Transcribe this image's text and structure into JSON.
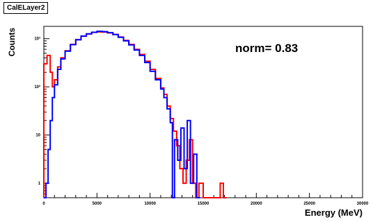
{
  "title": "CalELayer2",
  "annotation": "norm= 0.83",
  "chart_data": {
    "type": "line",
    "title": "CalELayer2",
    "xlabel": "Energy (MeV)",
    "ylabel": "Counts",
    "xlim": [
      0,
      30000
    ],
    "ylim": [
      0.5,
      1800
    ],
    "y_scale": "log",
    "x_ticks": [
      0,
      5000,
      10000,
      15000,
      20000,
      25000,
      30000
    ],
    "x_tick_labels": [
      "0",
      "5000",
      "10000",
      "15000",
      "20000",
      "25000",
      "30000"
    ],
    "y_ticks": [
      1,
      10,
      100,
      1000
    ],
    "y_tick_labels": [
      "1",
      "10",
      "10²",
      "10³"
    ],
    "grid": false,
    "series": [
      {
        "color": "#ff0000",
        "points": [
          [
            0,
            300
          ],
          [
            300,
            450
          ],
          [
            600,
            200
          ],
          [
            800,
            100
          ],
          [
            1000,
            140
          ],
          [
            1300,
            260
          ],
          [
            1600,
            400
          ],
          [
            2000,
            560
          ],
          [
            2500,
            760
          ],
          [
            3000,
            950
          ],
          [
            3500,
            1120
          ],
          [
            4000,
            1250
          ],
          [
            4500,
            1350
          ],
          [
            5000,
            1380
          ],
          [
            5500,
            1370
          ],
          [
            6000,
            1320
          ],
          [
            6500,
            1220
          ],
          [
            7000,
            1080
          ],
          [
            7500,
            920
          ],
          [
            8000,
            760
          ],
          [
            8500,
            600
          ],
          [
            9000,
            470
          ],
          [
            9500,
            340
          ],
          [
            10000,
            230
          ],
          [
            10500,
            150
          ],
          [
            11000,
            95
          ],
          [
            11300,
            70
          ],
          [
            11600,
            40
          ],
          [
            11900,
            22
          ],
          [
            12200,
            12
          ],
          [
            12500,
            6
          ],
          [
            12800,
            2
          ],
          [
            13100,
            1
          ],
          [
            13400,
            3
          ],
          [
            13700,
            8
          ],
          [
            14000,
            1
          ],
          [
            14300,
            0.5
          ],
          [
            14600,
            1
          ],
          [
            15000,
            0.5
          ],
          [
            16600,
            1
          ],
          [
            16900,
            0.5
          ]
        ]
      },
      {
        "color": "#0000ff",
        "points": [
          [
            0,
            0.5
          ],
          [
            200,
            1
          ],
          [
            400,
            5
          ],
          [
            600,
            20
          ],
          [
            800,
            60
          ],
          [
            1000,
            110
          ],
          [
            1300,
            230
          ],
          [
            1600,
            380
          ],
          [
            2000,
            550
          ],
          [
            2500,
            750
          ],
          [
            3000,
            950
          ],
          [
            3500,
            1130
          ],
          [
            4000,
            1260
          ],
          [
            4500,
            1360
          ],
          [
            5000,
            1420
          ],
          [
            5500,
            1400
          ],
          [
            6000,
            1330
          ],
          [
            6500,
            1220
          ],
          [
            7000,
            1070
          ],
          [
            7500,
            900
          ],
          [
            8000,
            740
          ],
          [
            8500,
            580
          ],
          [
            9000,
            450
          ],
          [
            9500,
            320
          ],
          [
            10000,
            210
          ],
          [
            10500,
            140
          ],
          [
            11000,
            90
          ],
          [
            11300,
            60
          ],
          [
            11600,
            35
          ],
          [
            11900,
            18
          ],
          [
            12100,
            0.5
          ],
          [
            12300,
            8
          ],
          [
            12600,
            3
          ],
          [
            12900,
            14
          ],
          [
            13200,
            2
          ],
          [
            13500,
            20
          ],
          [
            13800,
            1
          ],
          [
            14100,
            4
          ],
          [
            14400,
            0.5
          ]
        ]
      }
    ]
  }
}
